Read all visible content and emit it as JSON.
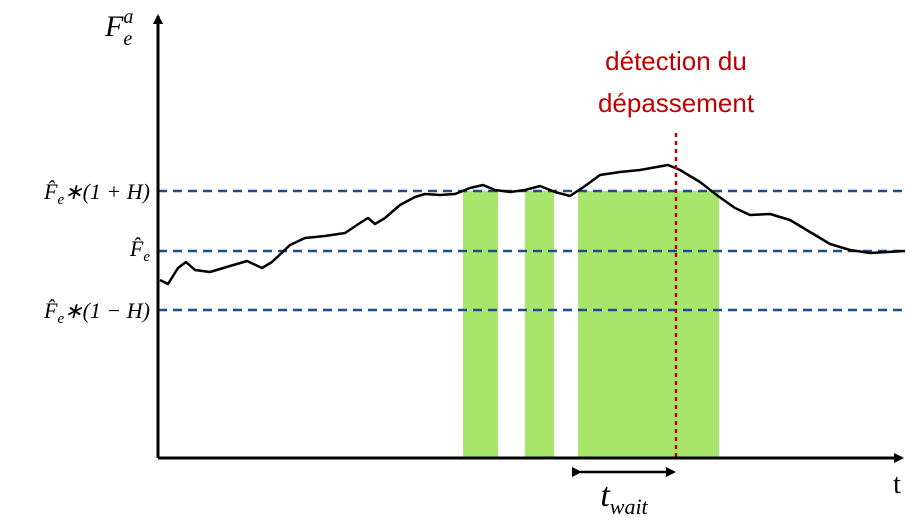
{
  "axes": {
    "y_label": {
      "base": "F",
      "sub": "e",
      "sup": "a"
    },
    "x_label": "t"
  },
  "thresholds": [
    {
      "base": "F̂",
      "sub": "e",
      "suffix": "∗(1 + H)"
    },
    {
      "base": "F̂",
      "sub": "e"
    },
    {
      "base": "F̂",
      "sub": "e",
      "suffix": "∗(1 − H)"
    }
  ],
  "annotation": {
    "lines": [
      "détection du",
      "dépassement"
    ]
  },
  "duration": {
    "base": "t",
    "sub": "wait"
  }
}
